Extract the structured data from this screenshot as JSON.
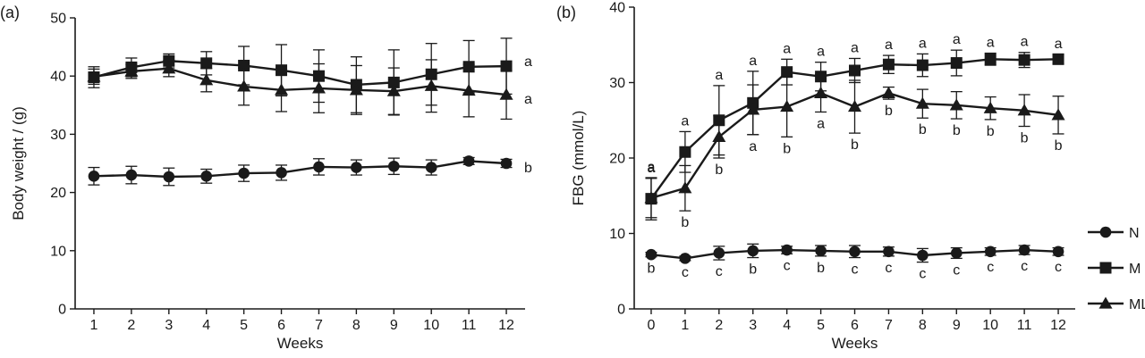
{
  "chart_data": [
    {
      "type": "line",
      "panel_label": "(a)",
      "xlabel": "Weeks",
      "ylabel": "Body weight / (g)",
      "x": [
        1,
        2,
        3,
        4,
        5,
        6,
        7,
        8,
        9,
        10,
        11,
        12
      ],
      "xlim": [
        0.5,
        12.5
      ],
      "ylim": [
        0,
        50
      ],
      "yticks": [
        0,
        10,
        20,
        30,
        40,
        50
      ],
      "series": [
        {
          "name": "N",
          "marker": "circle",
          "values": [
            22.8,
            23.0,
            22.7,
            22.8,
            23.3,
            23.4,
            24.4,
            24.3,
            24.5,
            24.3,
            25.4,
            25.0
          ],
          "errors": [
            1.5,
            1.5,
            1.5,
            1.2,
            1.4,
            1.3,
            1.4,
            1.3,
            1.4,
            1.3,
            0.6,
            0.7
          ]
        },
        {
          "name": "M",
          "marker": "square",
          "values": [
            39.8,
            41.5,
            42.6,
            42.2,
            41.8,
            41.0,
            40.0,
            38.5,
            38.9,
            40.3,
            41.6,
            41.7
          ],
          "errors": [
            1.8,
            1.6,
            1.2,
            2.0,
            3.3,
            4.4,
            4.5,
            4.8,
            5.6,
            5.3,
            4.5,
            4.8
          ]
        },
        {
          "name": "ML",
          "marker": "triangle",
          "values": [
            39.9,
            40.8,
            41.3,
            39.3,
            38.2,
            37.6,
            37.9,
            37.6,
            37.4,
            38.3,
            37.5,
            36.8
          ],
          "errors": [
            1.3,
            1.2,
            1.4,
            2.0,
            3.2,
            3.7,
            4.2,
            4.2,
            4.0,
            4.5,
            4.5,
            4.2
          ]
        }
      ],
      "annotations": [
        {
          "text": "a",
          "series": "M"
        },
        {
          "text": "a",
          "series": "ML"
        },
        {
          "text": "b",
          "series": "N"
        }
      ]
    },
    {
      "type": "line",
      "panel_label": "(b)",
      "xlabel": "Weeks",
      "ylabel": "FBG (mmol/L)",
      "x": [
        0,
        1,
        2,
        3,
        4,
        5,
        6,
        7,
        8,
        9,
        10,
        11,
        12
      ],
      "xlim": [
        -0.5,
        12.5
      ],
      "ylim": [
        0,
        40
      ],
      "yticks": [
        0,
        10,
        20,
        30,
        40
      ],
      "legend_position": "right",
      "series": [
        {
          "name": "N",
          "marker": "circle",
          "values": [
            7.2,
            6.7,
            7.4,
            7.7,
            7.8,
            7.7,
            7.6,
            7.6,
            7.1,
            7.4,
            7.6,
            7.8,
            7.6
          ],
          "errors": [
            0.3,
            0.3,
            0.9,
            0.9,
            0.5,
            0.7,
            0.8,
            0.6,
            0.9,
            0.7,
            0.5,
            0.6,
            0.5
          ],
          "letters": [
            "b",
            "c",
            "c",
            "b",
            "c",
            "b",
            "c",
            "c",
            "c",
            "c",
            "c",
            "c",
            "c"
          ]
        },
        {
          "name": "M",
          "marker": "square",
          "values": [
            14.6,
            20.8,
            25.0,
            27.3,
            31.4,
            30.8,
            31.6,
            32.4,
            32.3,
            32.6,
            33.1,
            33.0,
            33.1
          ],
          "errors": [
            2.8,
            2.7,
            4.6,
            4.2,
            1.7,
            1.9,
            1.6,
            1.2,
            1.5,
            1.7,
            0.8,
            1.0,
            0.6
          ],
          "letters": [
            "a",
            "a",
            "a",
            "a",
            "a",
            "a",
            "a",
            "a",
            "a",
            "a",
            "a",
            "a",
            "a"
          ]
        },
        {
          "name": "ML",
          "marker": "triangle",
          "values": [
            14.7,
            16.0,
            22.8,
            26.4,
            26.8,
            28.6,
            26.8,
            28.6,
            27.2,
            27.0,
            26.6,
            26.3,
            25.7
          ],
          "errors": [
            2.6,
            3.0,
            2.8,
            3.3,
            4.0,
            2.5,
            3.5,
            0.8,
            1.9,
            1.8,
            1.5,
            2.1,
            2.5
          ],
          "letters": [
            "a",
            "b",
            "b",
            "a",
            "b",
            "a",
            "b",
            "b",
            "b",
            "b",
            "b",
            "b",
            "b"
          ]
        }
      ]
    }
  ]
}
